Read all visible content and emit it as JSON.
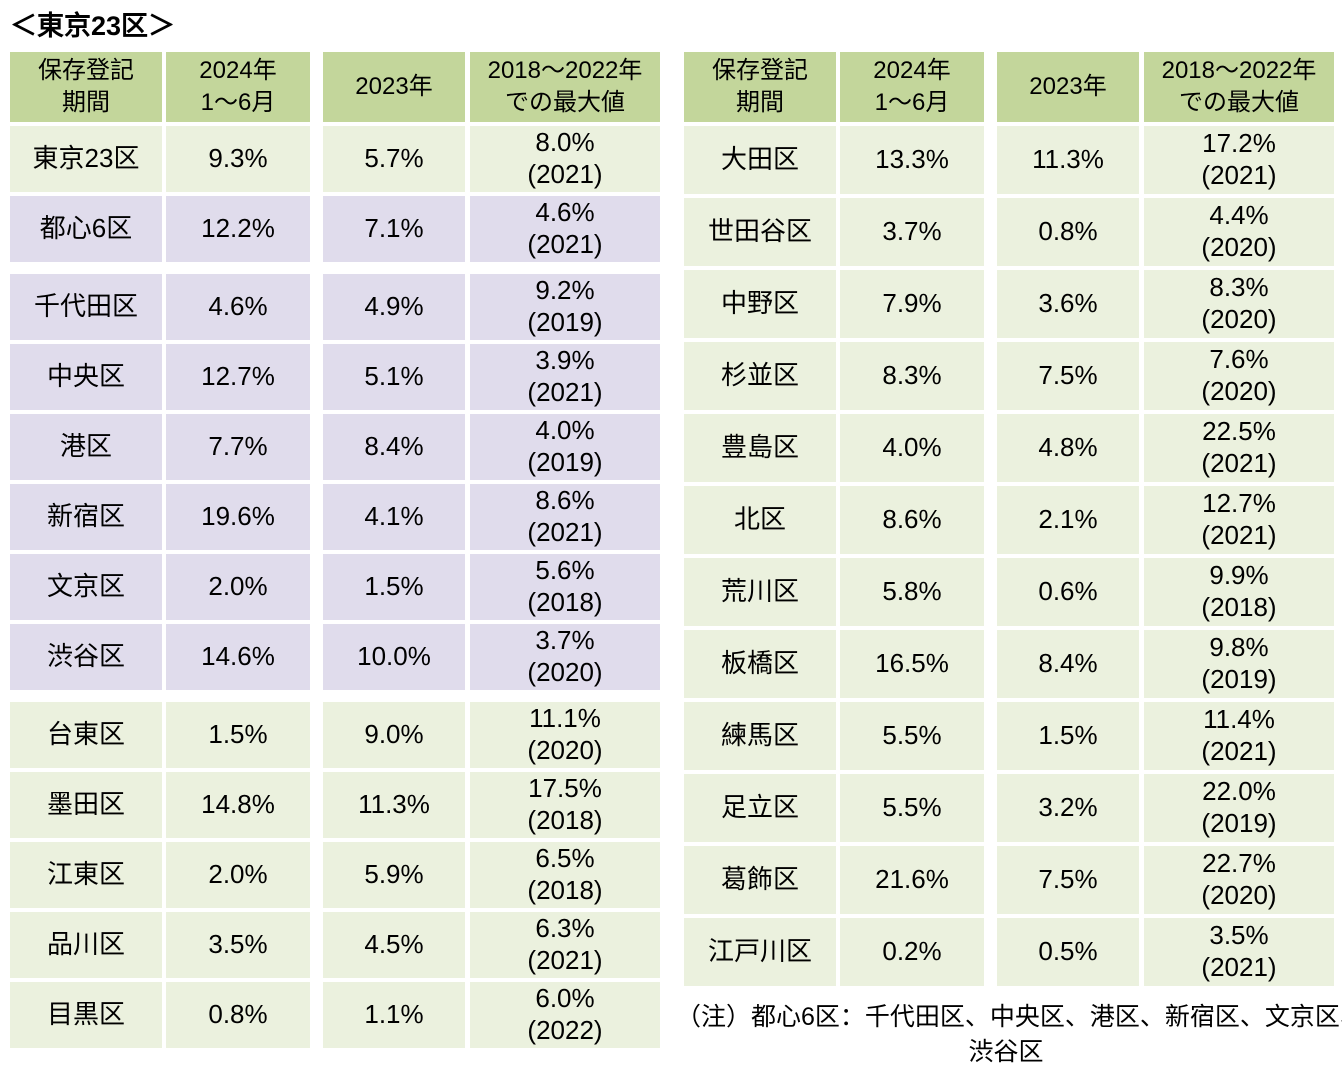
{
  "title": "＜東京23区＞",
  "colors": {
    "page_bg": "#ffffff",
    "header_bg": "#c3d69b",
    "row_green_bg": "#ebf1de",
    "row_purple_bg": "#e0dcec",
    "text": "#000000"
  },
  "note": {
    "line1": "（注）都心6区：千代田区、中央区、港区、新宿区、文京区、",
    "line2": "渋谷区"
  },
  "chart_data": {
    "type": "table",
    "title": "＜東京23区＞",
    "columns": [
      "保存登記期間",
      "2024年1〜6月",
      "2023年",
      "2018〜2022年での最大値"
    ],
    "column_headers_multiline": [
      "保存登記\n期間",
      "2024年\n1〜6月",
      "2023年",
      "2018〜2022年\nでの最大値"
    ],
    "note": "（注）都心6区：千代田区、中央区、港区、新宿区、文京区、渋谷区",
    "tables": [
      {
        "rows": [
          {
            "name": "東京23区",
            "v2024": "9.3%",
            "v2023": "5.7%",
            "max": "8.0%",
            "max_year": "(2021)",
            "tone": "green",
            "gap_before": false
          },
          {
            "name": "都心6区",
            "v2024": "12.2%",
            "v2023": "7.1%",
            "max": "4.6%",
            "max_year": "(2021)",
            "tone": "purple",
            "gap_before": false
          },
          {
            "name": "千代田区",
            "v2024": "4.6%",
            "v2023": "4.9%",
            "max": "9.2%",
            "max_year": "(2019)",
            "tone": "purple",
            "gap_before": true
          },
          {
            "name": "中央区",
            "v2024": "12.7%",
            "v2023": "5.1%",
            "max": "3.9%",
            "max_year": "(2021)",
            "tone": "purple",
            "gap_before": false
          },
          {
            "name": "港区",
            "v2024": "7.7%",
            "v2023": "8.4%",
            "max": "4.0%",
            "max_year": "(2019)",
            "tone": "purple",
            "gap_before": false
          },
          {
            "name": "新宿区",
            "v2024": "19.6%",
            "v2023": "4.1%",
            "max": "8.6%",
            "max_year": "(2021)",
            "tone": "purple",
            "gap_before": false
          },
          {
            "name": "文京区",
            "v2024": "2.0%",
            "v2023": "1.5%",
            "max": "5.6%",
            "max_year": "(2018)",
            "tone": "purple",
            "gap_before": false
          },
          {
            "name": "渋谷区",
            "v2024": "14.6%",
            "v2023": "10.0%",
            "max": "3.7%",
            "max_year": "(2020)",
            "tone": "purple",
            "gap_before": false
          },
          {
            "name": "台東区",
            "v2024": "1.5%",
            "v2023": "9.0%",
            "max": "11.1%",
            "max_year": "(2020)",
            "tone": "green",
            "gap_before": true
          },
          {
            "name": "墨田区",
            "v2024": "14.8%",
            "v2023": "11.3%",
            "max": "17.5%",
            "max_year": "(2018)",
            "tone": "green",
            "gap_before": false
          },
          {
            "name": "江東区",
            "v2024": "2.0%",
            "v2023": "5.9%",
            "max": "6.5%",
            "max_year": "(2018)",
            "tone": "green",
            "gap_before": false
          },
          {
            "name": "品川区",
            "v2024": "3.5%",
            "v2023": "4.5%",
            "max": "6.3%",
            "max_year": "(2021)",
            "tone": "green",
            "gap_before": false
          },
          {
            "name": "目黒区",
            "v2024": "0.8%",
            "v2023": "1.1%",
            "max": "6.0%",
            "max_year": "(2022)",
            "tone": "green",
            "gap_before": false
          }
        ]
      },
      {
        "rows": [
          {
            "name": "大田区",
            "v2024": "13.3%",
            "v2023": "11.3%",
            "max": "17.2%",
            "max_year": "(2021)",
            "tone": "green",
            "gap_before": false
          },
          {
            "name": "世田谷区",
            "v2024": "3.7%",
            "v2023": "0.8%",
            "max": "4.4%",
            "max_year": "(2020)",
            "tone": "green",
            "gap_before": false
          },
          {
            "name": "中野区",
            "v2024": "7.9%",
            "v2023": "3.6%",
            "max": "8.3%",
            "max_year": "(2020)",
            "tone": "green",
            "gap_before": false
          },
          {
            "name": "杉並区",
            "v2024": "8.3%",
            "v2023": "7.5%",
            "max": "7.6%",
            "max_year": "(2020)",
            "tone": "green",
            "gap_before": false
          },
          {
            "name": "豊島区",
            "v2024": "4.0%",
            "v2023": "4.8%",
            "max": "22.5%",
            "max_year": "(2021)",
            "tone": "green",
            "gap_before": false
          },
          {
            "name": "北区",
            "v2024": "8.6%",
            "v2023": "2.1%",
            "max": "12.7%",
            "max_year": "(2021)",
            "tone": "green",
            "gap_before": false
          },
          {
            "name": "荒川区",
            "v2024": "5.8%",
            "v2023": "0.6%",
            "max": "9.9%",
            "max_year": "(2018)",
            "tone": "green",
            "gap_before": false
          },
          {
            "name": "板橋区",
            "v2024": "16.5%",
            "v2023": "8.4%",
            "max": "9.8%",
            "max_year": "(2019)",
            "tone": "green",
            "gap_before": false
          },
          {
            "name": "練馬区",
            "v2024": "5.5%",
            "v2023": "1.5%",
            "max": "11.4%",
            "max_year": "(2021)",
            "tone": "green",
            "gap_before": false
          },
          {
            "name": "足立区",
            "v2024": "5.5%",
            "v2023": "3.2%",
            "max": "22.0%",
            "max_year": "(2019)",
            "tone": "green",
            "gap_before": false
          },
          {
            "name": "葛飾区",
            "v2024": "21.6%",
            "v2023": "7.5%",
            "max": "22.7%",
            "max_year": "(2020)",
            "tone": "green",
            "gap_before": false
          },
          {
            "name": "江戸川区",
            "v2024": "0.2%",
            "v2023": "0.5%",
            "max": "3.5%",
            "max_year": "(2021)",
            "tone": "green",
            "gap_before": false
          }
        ]
      }
    ]
  }
}
